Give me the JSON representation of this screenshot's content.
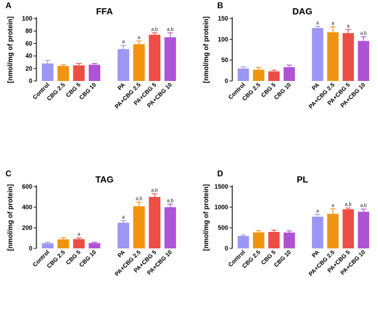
{
  "chart_data": [
    {
      "panel": "A",
      "type": "bar",
      "title": "FFA",
      "ylabel": "[nmol/mg of protein]",
      "xlabel": "",
      "ylim": [
        0,
        100
      ],
      "yticks": [
        0,
        20,
        40,
        60,
        80,
        100
      ],
      "categories": [
        "Control",
        "CBG 2.5",
        "CBG 5",
        "CBG 10",
        "PA",
        "PA+CBG 2.5",
        "PA+CBG 5",
        "PA+CBG 10"
      ],
      "values": [
        28,
        24,
        25,
        26,
        51,
        59,
        74,
        70
      ],
      "errors": [
        5,
        2,
        3,
        2,
        6,
        5,
        3,
        7
      ],
      "significance": [
        "",
        "",
        "",
        "",
        "a",
        "a",
        "a,b",
        "a,b"
      ],
      "colors": [
        "#9B97F2",
        "#F0940F",
        "#EE4D45",
        "#B052D6",
        "#9B97F2",
        "#F0940F",
        "#EE4D45",
        "#B052D6"
      ]
    },
    {
      "panel": "B",
      "type": "bar",
      "title": "DAG",
      "ylabel": "[nmol/mg of protein]",
      "xlabel": "",
      "ylim": [
        0,
        150
      ],
      "yticks": [
        0,
        50,
        100,
        150
      ],
      "categories": [
        "Control",
        "CBG 2.5",
        "CBG 5",
        "CBG 10",
        "PA",
        "PA+CBG 2.5",
        "PA+CBG 5",
        "PA+CBG 10"
      ],
      "values": [
        30,
        27,
        23,
        33,
        127,
        117,
        115,
        96
      ],
      "errors": [
        4,
        5,
        3,
        5,
        4,
        13,
        9,
        10
      ],
      "significance": [
        "",
        "",
        "",
        "",
        "a",
        "a",
        "a",
        "a,b"
      ],
      "colors": [
        "#9B97F2",
        "#F0940F",
        "#EE4D45",
        "#B052D6",
        "#9B97F2",
        "#F0940F",
        "#EE4D45",
        "#B052D6"
      ]
    },
    {
      "panel": "C",
      "type": "bar",
      "title": "TAG",
      "ylabel": "[nmol/mg of protein]",
      "xlabel": "",
      "ylim": [
        0,
        600
      ],
      "yticks": [
        0,
        200,
        400,
        600
      ],
      "categories": [
        "Control",
        "CBG 2.5",
        "CBG 5",
        "CBG 10",
        "PA",
        "PA+CBG 2.5",
        "PA+CBG 5",
        "PA+CBG 10"
      ],
      "values": [
        50,
        88,
        90,
        52,
        250,
        410,
        500,
        400
      ],
      "errors": [
        10,
        15,
        12,
        8,
        20,
        40,
        30,
        30
      ],
      "significance": [
        "",
        "",
        "a",
        "",
        "a",
        "a,b",
        "a,b",
        "a,b"
      ],
      "colors": [
        "#9B97F2",
        "#F0940F",
        "#EE4D45",
        "#B052D6",
        "#9B97F2",
        "#F0940F",
        "#EE4D45",
        "#B052D6"
      ]
    },
    {
      "panel": "D",
      "type": "bar",
      "title": "PL",
      "ylabel": "[nmol/mg of protein]",
      "xlabel": "",
      "ylim": [
        0,
        1500
      ],
      "yticks": [
        0,
        500,
        1000,
        1500
      ],
      "categories": [
        "Control",
        "CBG 2.5",
        "CBG 5",
        "CBG 10",
        "PA",
        "PA+CBG 2.5",
        "PA+CBG 5",
        "PA+CBG 10"
      ],
      "values": [
        300,
        390,
        400,
        385,
        770,
        840,
        950,
        890
      ],
      "errors": [
        25,
        40,
        45,
        40,
        55,
        120,
        30,
        65
      ],
      "significance": [
        "",
        "",
        "",
        "",
        "a",
        "a",
        "a,b",
        "a,b"
      ],
      "colors": [
        "#9B97F2",
        "#F0940F",
        "#EE4D45",
        "#B052D6",
        "#9B97F2",
        "#F0940F",
        "#EE4D45",
        "#B052D6"
      ]
    }
  ]
}
